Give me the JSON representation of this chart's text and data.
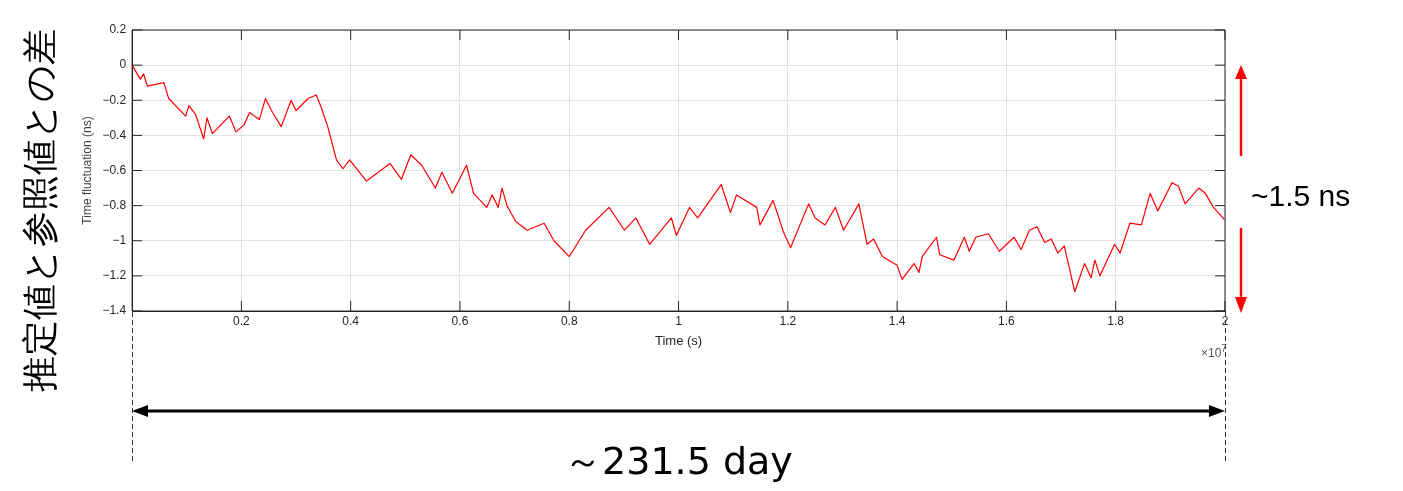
{
  "chart_data": {
    "type": "line",
    "xlabel": "Time (s)",
    "ylabel": "Time fluctuation (ns)",
    "xlim": [
      0,
      2
    ],
    "ylim": [
      -1.4,
      0.2
    ],
    "xticks": [
      0.2,
      0.4,
      0.6,
      0.8,
      1,
      1.2,
      1.4,
      1.6,
      1.8,
      2
    ],
    "yticks": [
      {
        "value": -1.4,
        "label": "−1.4"
      },
      {
        "value": -1.2,
        "label": "−1.2"
      },
      {
        "value": -1,
        "label": "−1"
      },
      {
        "value": -0.8,
        "label": "−0.8"
      },
      {
        "value": -0.6,
        "label": "−0.6"
      },
      {
        "value": -0.4,
        "label": "−0.4"
      },
      {
        "value": -0.2,
        "label": "−0.2"
      },
      0,
      0.2
    ],
    "grid": true,
    "legend": false,
    "marker": "none",
    "line_style": "solid",
    "annotations": [
      "推定値と参照値との差",
      "×10$^{7}$",
      "~1.5 ns",
      "～231.5 day"
    ],
    "series": [
      {
        "color": "#ff0000",
        "x": [
          0,
          0.015,
          0.021,
          0.028,
          0.058,
          0.067,
          0.098,
          0.104,
          0.116,
          0.131,
          0.137,
          0.147,
          0.178,
          0.19,
          0.205,
          0.215,
          0.233,
          0.244,
          0.257,
          0.273,
          0.291,
          0.3,
          0.322,
          0.337,
          0.346,
          0.358,
          0.374,
          0.386,
          0.398,
          0.429,
          0.472,
          0.493,
          0.51,
          0.53,
          0.555,
          0.567,
          0.586,
          0.612,
          0.625,
          0.649,
          0.659,
          0.67,
          0.677,
          0.686,
          0.702,
          0.723,
          0.754,
          0.772,
          0.8,
          0.83,
          0.873,
          0.901,
          0.922,
          0.947,
          0.987,
          0.996,
          1.02,
          1.035,
          1.078,
          1.095,
          1.106,
          1.143,
          1.149,
          1.173,
          1.192,
          1.205,
          1.238,
          1.25,
          1.268,
          1.287,
          1.302,
          1.33,
          1.345,
          1.357,
          1.373,
          1.4,
          1.409,
          1.431,
          1.44,
          1.446,
          1.472,
          1.478,
          1.504,
          1.523,
          1.532,
          1.544,
          1.567,
          1.587,
          1.614,
          1.627,
          1.642,
          1.656,
          1.67,
          1.682,
          1.694,
          1.706,
          1.725,
          1.743,
          1.755,
          1.762,
          1.771,
          1.798,
          1.808,
          1.826,
          1.847,
          1.863,
          1.877,
          1.903,
          1.915,
          1.927,
          1.952,
          1.964,
          1.979,
          1.999
        ],
        "values": [
          0,
          -0.08,
          -0.05,
          -0.12,
          -0.1,
          -0.19,
          -0.29,
          -0.23,
          -0.28,
          -0.42,
          -0.3,
          -0.39,
          -0.29,
          -0.38,
          -0.34,
          -0.27,
          -0.31,
          -0.19,
          -0.27,
          -0.35,
          -0.2,
          -0.26,
          -0.19,
          -0.17,
          -0.24,
          -0.35,
          -0.54,
          -0.59,
          -0.54,
          -0.66,
          -0.56,
          -0.65,
          -0.51,
          -0.57,
          -0.7,
          -0.61,
          -0.73,
          -0.57,
          -0.73,
          -0.81,
          -0.74,
          -0.81,
          -0.7,
          -0.8,
          -0.89,
          -0.94,
          -0.9,
          -1.0,
          -1.09,
          -0.94,
          -0.81,
          -0.94,
          -0.87,
          -1.02,
          -0.87,
          -0.97,
          -0.81,
          -0.87,
          -0.68,
          -0.84,
          -0.74,
          -0.81,
          -0.91,
          -0.77,
          -0.95,
          -1.04,
          -0.79,
          -0.87,
          -0.91,
          -0.81,
          -0.94,
          -0.79,
          -1.02,
          -0.99,
          -1.09,
          -1.14,
          -1.22,
          -1.13,
          -1.18,
          -1.09,
          -0.98,
          -1.08,
          -1.11,
          -0.98,
          -1.06,
          -0.98,
          -0.96,
          -1.06,
          -0.98,
          -1.05,
          -0.94,
          -0.92,
          -1.01,
          -0.99,
          -1.07,
          -1.03,
          -1.29,
          -1.13,
          -1.21,
          -1.11,
          -1.2,
          -1.02,
          -1.07,
          -0.9,
          -0.91,
          -0.73,
          -0.83,
          -0.67,
          -0.69,
          -0.79,
          -0.7,
          -0.73,
          -0.81,
          -0.88
        ]
      }
    ]
  }
}
